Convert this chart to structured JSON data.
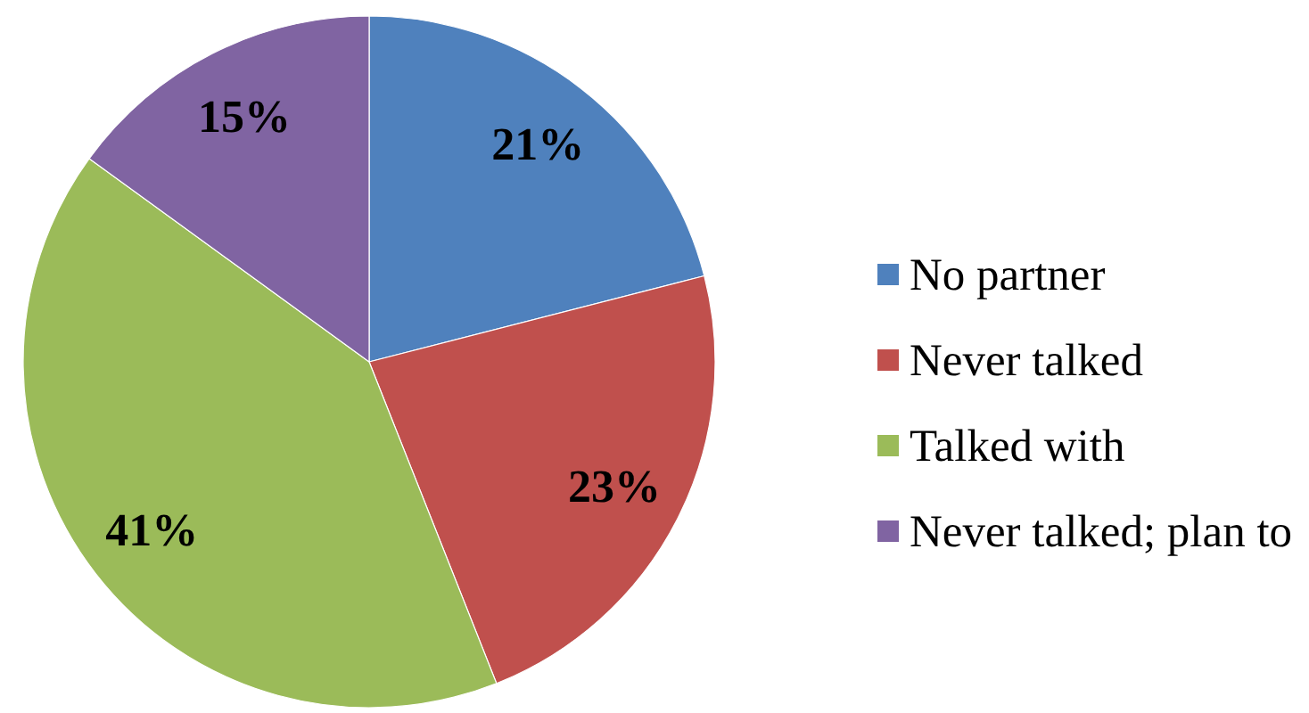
{
  "chart_data": {
    "type": "pie",
    "categories": [
      "No partner",
      "Never talked",
      "Talked with",
      "Never talked; plan to"
    ],
    "values": [
      21,
      23,
      41,
      15
    ],
    "colors": [
      "#4f81bd",
      "#c0504d",
      "#9bbb59",
      "#8064a2"
    ],
    "value_labels": [
      "21%",
      "23%",
      "41%",
      "15%"
    ],
    "legend": "right"
  }
}
